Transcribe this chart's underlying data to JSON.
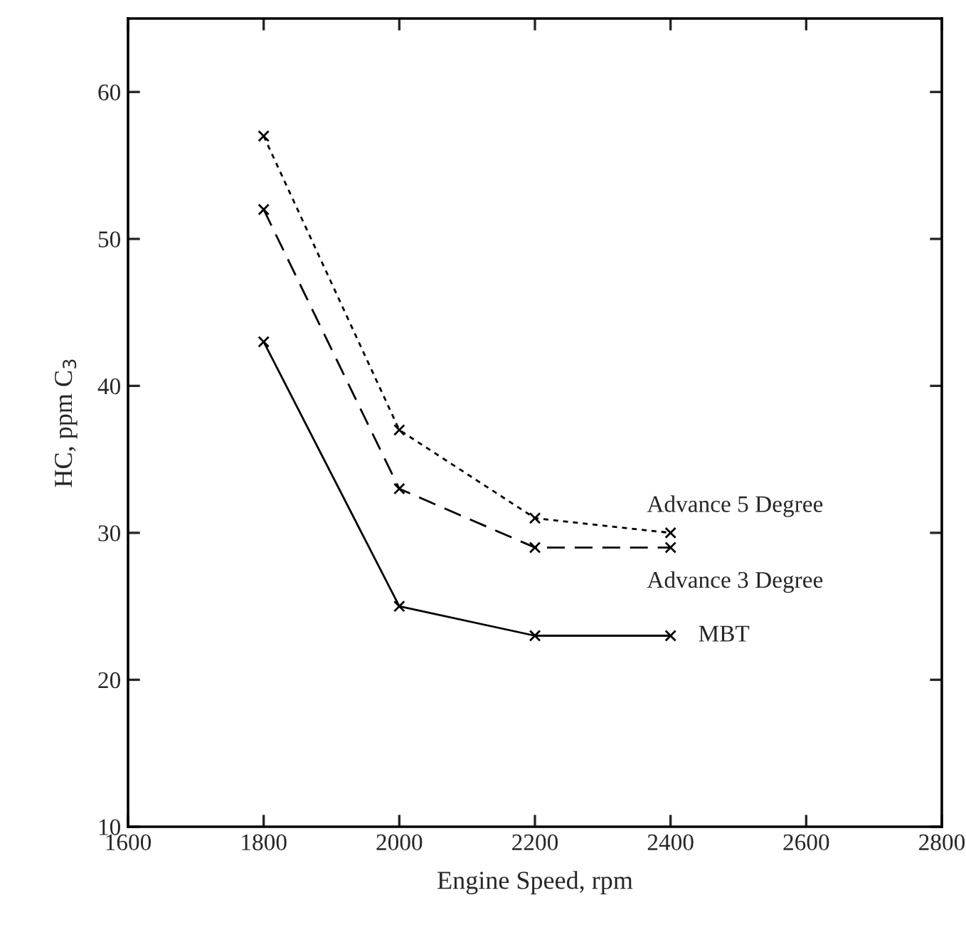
{
  "chart_data": {
    "type": "line",
    "xlabel": "Engine Speed, rpm",
    "ylabel": "HC, ppm C$_{3}$",
    "x": [
      1800,
      2000,
      2200,
      2400
    ],
    "series": [
      {
        "name": "Advance 5 Degree",
        "color": "#000000",
        "values": [
          57,
          37,
          31,
          30
        ],
        "line_style": "dotted"
      },
      {
        "name": "Advance 3 Degree",
        "color": "#000000",
        "values": [
          52,
          33,
          29,
          29
        ],
        "line_style": "dashed"
      },
      {
        "name": "MBT",
        "color": "#000000",
        "values": [
          43,
          25,
          23,
          23
        ],
        "line_style": "solid"
      }
    ],
    "marker": "cross",
    "grid": false,
    "legend": false,
    "xlim": [
      1600,
      2800
    ],
    "xticks": [
      1600,
      1800,
      2000,
      2200,
      2400,
      2600,
      2800
    ],
    "ylim": [
      10,
      65
    ],
    "yticks": [
      10,
      20,
      30,
      40,
      50,
      60
    ]
  }
}
